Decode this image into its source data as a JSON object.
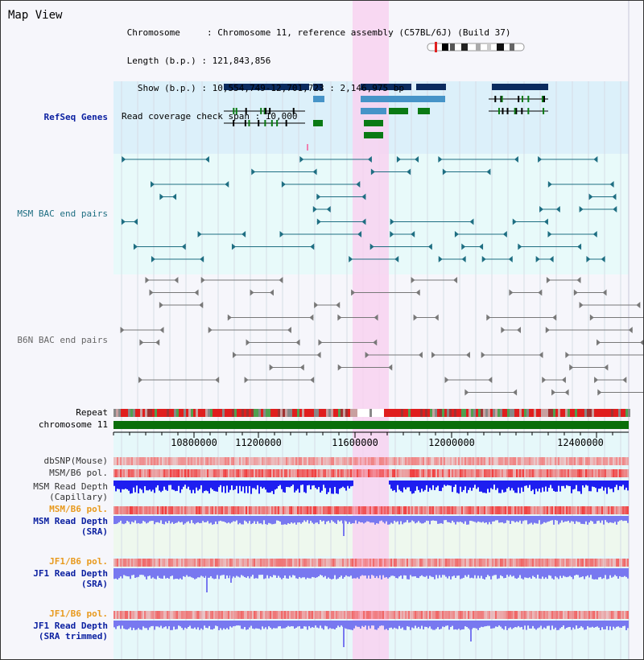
{
  "view": {
    "title": "Map View",
    "info_lines": [
      " Chromosome     : Chromosome 11, reference assembly (C57BL/6J) (Build 37)",
      " Length (b.p.) : 121,843,856",
      "   Show (b.p.) : 10,554,749-12,701,723 : 2,146,975 bp",
      "Read coverage check span : 10,000"
    ]
  },
  "tracks": {
    "refseq": "RefSeq Genes",
    "msm_bac": "MSM BAC end pairs",
    "b6n_bac": "B6N BAC end pairs",
    "repeat": "Repeat",
    "chromosome": "chromosome 11",
    "dbsnp": "dbSNP(Mouse)",
    "msm_b6_pol_1": "MSM/B6 pol.",
    "msm_depth_cap_1": "MSM Read Depth",
    "msm_depth_cap_2": "(Capillary)",
    "msm_b6_pol_2": "MSM/B6 pol.",
    "msm_depth_sra_1": "MSM Read Depth",
    "msm_depth_sra_2": "(SRA)",
    "jf1_b6_pol_1": "JF1/B6 pol.",
    "jf1_depth_sra_1": "JF1 Read Depth",
    "jf1_depth_sra_2": "(SRA)",
    "jf1_b6_pol_2": "JF1/B6 pol.",
    "jf1_depth_trim_1": "JF1 Read Depth",
    "jf1_depth_trim_2": "(SRA trimmed)"
  },
  "axis": {
    "ticks": [
      "10800000",
      "11200000",
      "11600000",
      "12000000",
      "12400000"
    ]
  },
  "colors": {
    "refseq_bg": "#dcf0fa",
    "bac_bg": "#e8fafa",
    "highlight": "#f8d2f0",
    "gene_dark": "#0a2b5f",
    "gene_mid": "#4694c8",
    "gene_green": "#0a7a14",
    "msm_track": "#1e6e82",
    "b6n_track": "#787878",
    "depth_blue": "#1e1ef0",
    "depth_light": "#7878f0",
    "pol_red": "#f03c3c",
    "chrom_green": "#0a6e0a"
  },
  "icons": {
    "chromosome_ideogram": "chromosome-ideogram-icon"
  }
}
